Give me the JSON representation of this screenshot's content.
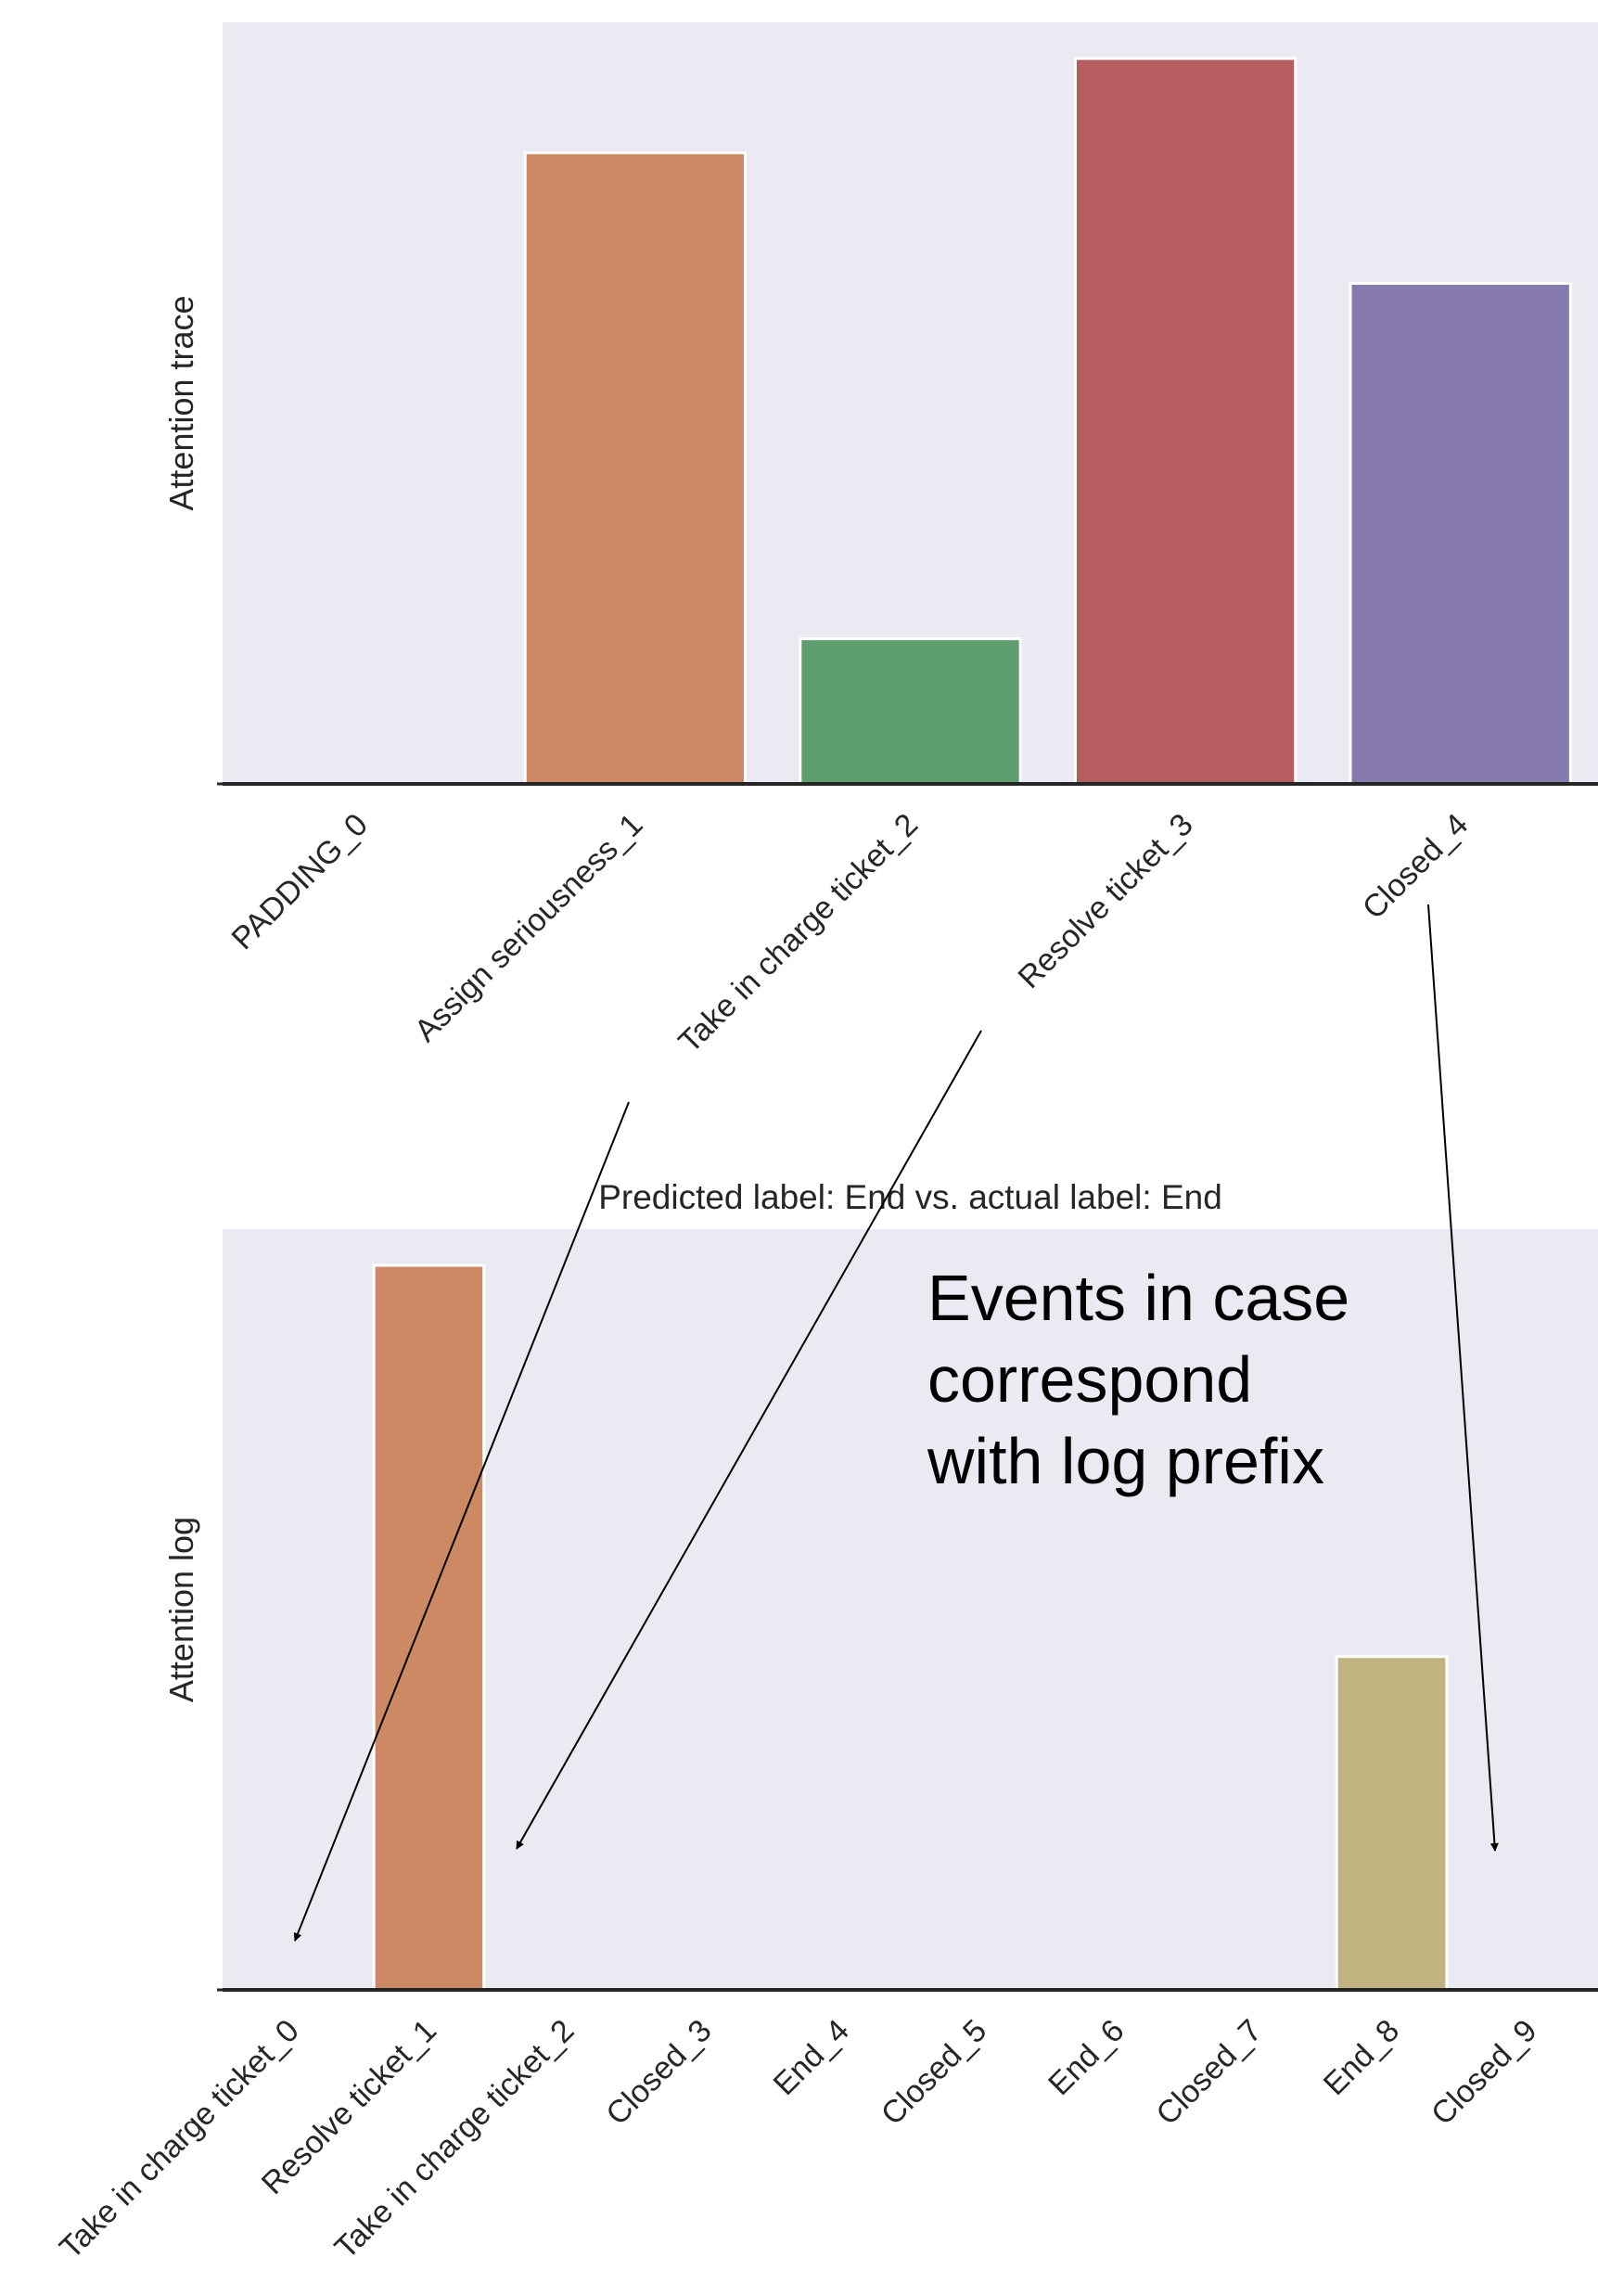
{
  "chart_data": [
    {
      "type": "bar",
      "title": "",
      "xlabel": "",
      "ylabel": "Attention trace",
      "categories": [
        "PADDING_0",
        "Assign seriousness_1",
        "Take in charge ticket_2",
        "Resolve ticket_3",
        "Closed_4"
      ],
      "values": [
        0.0,
        0.87,
        0.2,
        1.0,
        0.69
      ],
      "colors": [
        "#4c72b0",
        "#cc8963",
        "#5f9e6e",
        "#b55d60",
        "#857aab"
      ],
      "ylim": [
        0,
        1.05
      ],
      "grid": false,
      "background": "#eaeaf2"
    },
    {
      "type": "bar",
      "title": "Predicted label: End vs. actual label: End",
      "xlabel": "",
      "ylabel": "Attention log",
      "categories": [
        "Take in charge ticket_0",
        "Resolve ticket_1",
        "Take in charge ticket_2",
        "Closed_3",
        "End_4",
        "Closed_5",
        "End_6",
        "Closed_7",
        "End_8",
        "Closed_9"
      ],
      "values": [
        0.0,
        1.0,
        0.0,
        0.0,
        0.0,
        0.0,
        0.0,
        0.0,
        0.46,
        0.0
      ],
      "colors": [
        "#4c72b0",
        "#cc8963",
        "#5f9e6e",
        "#b55d60",
        "#857aab",
        "#8d7866",
        "#d095bf",
        "#8c8c8c",
        "#c1b37f",
        "#64b5cd"
      ],
      "ylim": [
        0,
        1.05
      ],
      "grid": false,
      "background": "#eaeaf2"
    }
  ],
  "annotation": {
    "lines": [
      "Events in case",
      "correspond",
      "with log prefix"
    ]
  },
  "arrows": [
    {
      "from": "Take in charge ticket_2",
      "to": "Take in charge ticket_0"
    },
    {
      "from": "Resolve ticket_3",
      "to": "Take in charge ticket_2"
    },
    {
      "from": "Closed_4",
      "to": "Closed_9"
    }
  ]
}
